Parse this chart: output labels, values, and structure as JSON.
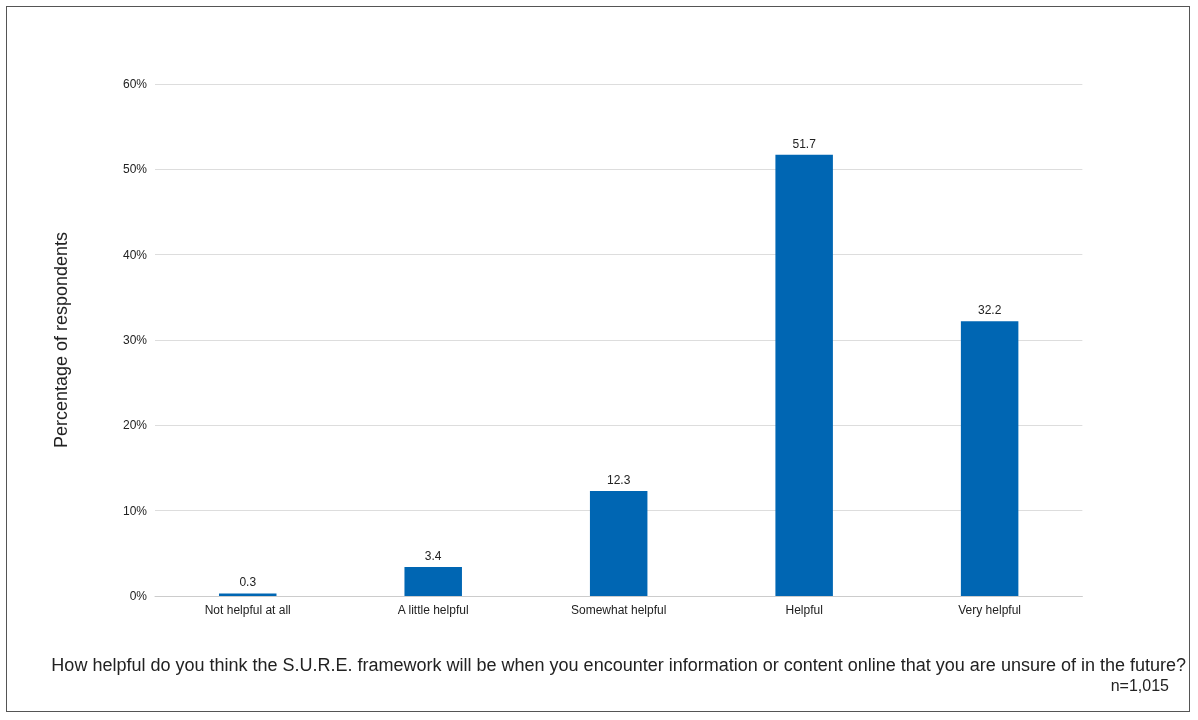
{
  "chart_data": {
    "type": "bar",
    "categories": [
      "Not helpful at all",
      "A little helpful",
      "Somewhat helpful",
      "Helpful",
      "Very helpful"
    ],
    "values": [
      0.3,
      3.4,
      12.3,
      51.7,
      32.2
    ],
    "color": "#0066b3",
    "xlabel": "How helpful do you think the S.U.R.E. framework will be when you encounter information or content online that you are unsure of in the future?",
    "ylabel": "Percentage of respondents",
    "ylim": [
      0,
      60
    ],
    "yticks": [
      {
        "value": 0,
        "label": "0%"
      },
      {
        "value": 10,
        "label": "10%"
      },
      {
        "value": 20,
        "label": "20%"
      },
      {
        "value": 30,
        "label": "30%"
      },
      {
        "value": 40,
        "label": "40%"
      },
      {
        "value": 50,
        "label": "50%"
      },
      {
        "value": 60,
        "label": "60%"
      }
    ],
    "grid": "y",
    "data_labels": true,
    "annotations": [
      "n=1,015"
    ]
  }
}
